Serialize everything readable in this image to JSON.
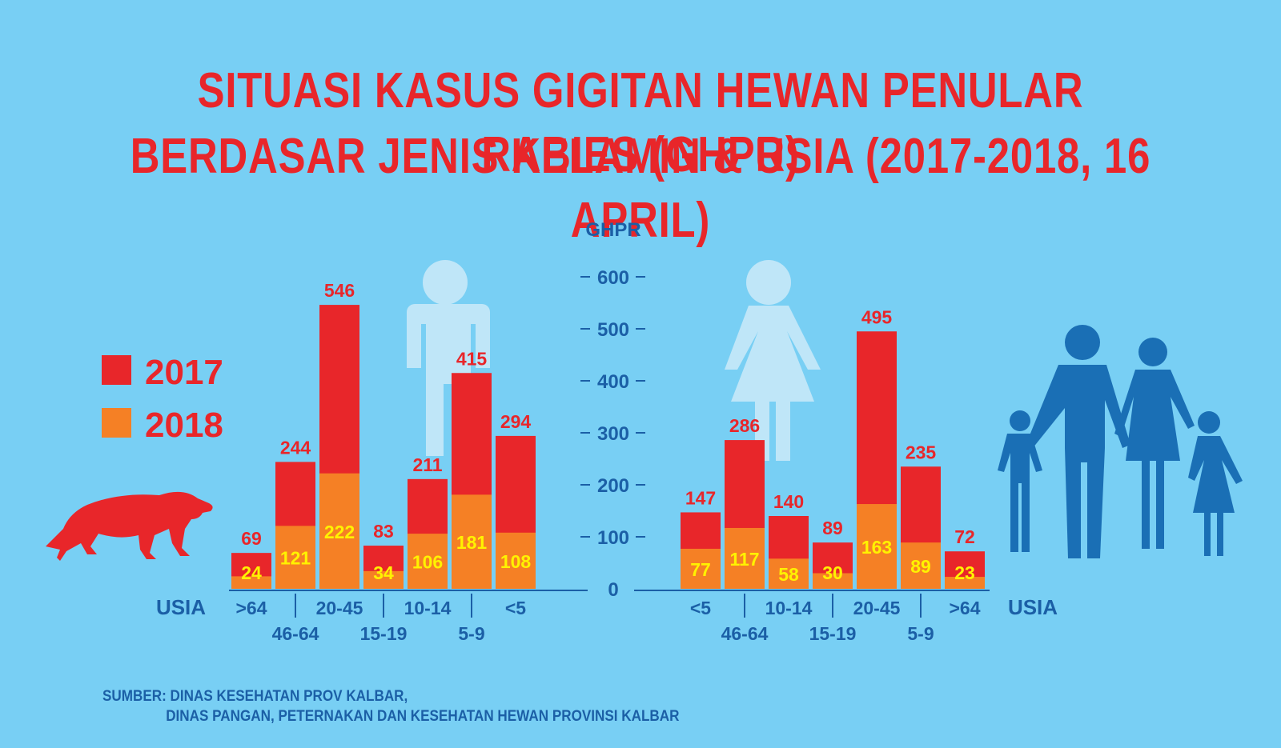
{
  "title_line1": "SITUASI KASUS GIGITAN HEWAN PENULAR RABIES (GHPR)",
  "title_line2": "BERDASAR JENIS KELAMIN & USIA (2017-2018, 16 APRIL)",
  "source_line1": "SUMBER: DINAS KESEHATAN PROV KALBAR,",
  "source_line2": "DINAS PANGAN, PETERNAKAN DAN KESEHATAN HEWAN PROVINSI KALBAR",
  "colors": {
    "background": "#78cff4",
    "series_2017": "#e8262a",
    "series_2018": "#f58025",
    "axis": "#1b5fa6",
    "label_2018": "#fff200",
    "silhouette_light": "#bfe6f8",
    "silhouette_dark": "#1a6fb5"
  },
  "icons": [
    "dog-icon",
    "man-icon",
    "woman-icon",
    "family-icon"
  ],
  "chart_data": [
    {
      "type": "bar",
      "panel": "left",
      "ylabel": "GHPR",
      "xlabel": "USIA",
      "ylim": [
        0,
        600
      ],
      "yticks": [
        0,
        100,
        200,
        300,
        400,
        500,
        600
      ],
      "categories": [
        ">64",
        "46-64",
        "20-45",
        "15-19",
        "10-14",
        "5-9",
        "<5"
      ],
      "series": [
        {
          "name": "2017",
          "values": [
            69,
            244,
            546,
            83,
            211,
            415,
            294
          ]
        },
        {
          "name": "2018",
          "values": [
            24,
            121,
            222,
            34,
            106,
            181,
            108
          ]
        }
      ],
      "legend": {
        "position": "left",
        "entries": [
          "2017",
          "2018"
        ]
      },
      "grid": false
    },
    {
      "type": "bar",
      "panel": "right",
      "ylabel": "GHPR",
      "xlabel": "USIA",
      "ylim": [
        0,
        600
      ],
      "categories": [
        "<5",
        "46-64",
        "10-14",
        "15-19",
        "20-45",
        "5-9",
        ">64"
      ],
      "series": [
        {
          "name": "2017",
          "values": [
            147,
            286,
            140,
            89,
            495,
            235,
            72
          ]
        },
        {
          "name": "2018",
          "values": [
            77,
            117,
            58,
            30,
            163,
            89,
            23
          ]
        }
      ],
      "grid": false
    }
  ]
}
